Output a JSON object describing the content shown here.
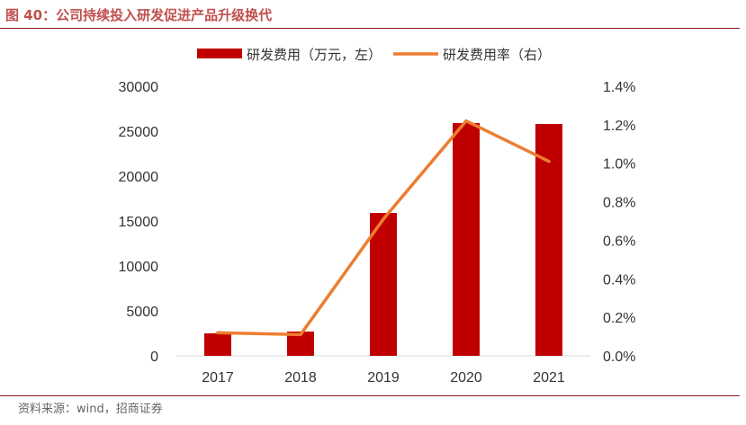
{
  "figure": {
    "title": "图 40：公司持续投入研发促进产品升级换代",
    "source": "资料来源：wind，招商证券"
  },
  "chart_data": {
    "type": "bar",
    "title": "公司持续投入研发促进产品升级换代",
    "categories": [
      "2017",
      "2018",
      "2019",
      "2020",
      "2021"
    ],
    "series": [
      {
        "name": "研发费用（万元，左）",
        "type": "bar",
        "axis": "left",
        "color": "#C00000",
        "values": [
          2500,
          2700,
          15900,
          25900,
          25800
        ]
      },
      {
        "name": "研发费用率（右）",
        "type": "line",
        "axis": "right",
        "color": "#ED7D31",
        "values": [
          0.0012,
          0.0011,
          0.0071,
          0.0122,
          0.0101
        ]
      }
    ],
    "y_left": {
      "range": [
        0,
        30000
      ],
      "ticks": [
        0,
        5000,
        10000,
        15000,
        20000,
        25000,
        30000
      ],
      "tick_labels": [
        "0",
        "5000",
        "10000",
        "15000",
        "20000",
        "25000",
        "30000"
      ]
    },
    "y_right": {
      "range": [
        0,
        0.014
      ],
      "ticks": [
        0,
        0.002,
        0.004,
        0.006,
        0.008,
        0.01,
        0.012,
        0.014
      ],
      "tick_labels": [
        "0.0%",
        "0.2%",
        "0.4%",
        "0.6%",
        "0.8%",
        "1.0%",
        "1.2%",
        "1.4%"
      ]
    },
    "legend_position": "top",
    "grid": false
  }
}
